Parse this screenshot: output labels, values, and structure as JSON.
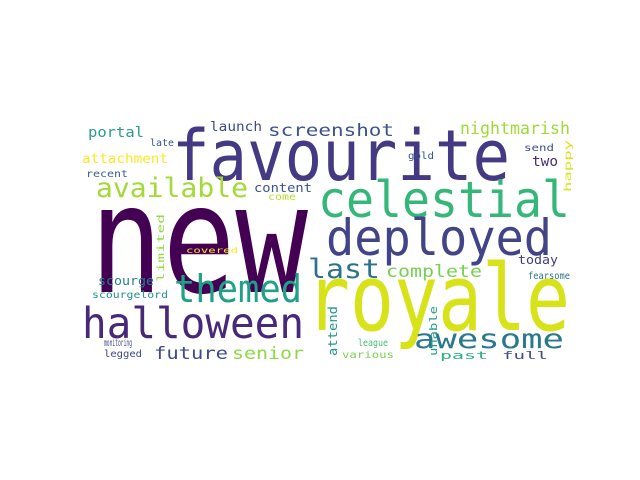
{
  "words": [
    {
      "text": "new",
      "color": "#440154"
    },
    {
      "text": "royale",
      "color": "#d8e219"
    },
    {
      "text": "favourite",
      "color": "#443983"
    },
    {
      "text": "celestial",
      "color": "#35b779"
    },
    {
      "text": "deployed",
      "color": "#414487"
    },
    {
      "text": "halloween",
      "color": "#482878"
    },
    {
      "text": "themed",
      "color": "#1fa188"
    },
    {
      "text": "available",
      "color": "#a2da37"
    },
    {
      "text": "awesome",
      "color": "#2a788e"
    },
    {
      "text": "last",
      "color": "#2c728e"
    },
    {
      "text": "screenshot",
      "color": "#3b528b"
    },
    {
      "text": "nightmarish",
      "color": "#a0da39"
    },
    {
      "text": "complete",
      "color": "#75d054"
    },
    {
      "text": "future",
      "color": "#3e4a89"
    },
    {
      "text": "senior",
      "color": "#8fd744"
    },
    {
      "text": "portal",
      "color": "#2a9d8c"
    },
    {
      "text": "launch",
      "color": "#3e4989"
    },
    {
      "text": "attachment",
      "color": "#fde725"
    },
    {
      "text": "content",
      "color": "#3a548c"
    },
    {
      "text": "two",
      "color": "#472d7b"
    },
    {
      "text": "scourge",
      "color": "#277f8e"
    },
    {
      "text": "today",
      "color": "#443a83"
    },
    {
      "text": "late",
      "color": "#3b518b"
    },
    {
      "text": "gold",
      "color": "#39568c"
    },
    {
      "text": "send",
      "color": "#3e4c8a"
    },
    {
      "text": "recent",
      "color": "#355f8d"
    },
    {
      "text": "come",
      "color": "#b5de2b"
    },
    {
      "text": "covered",
      "color": "#fde725"
    },
    {
      "text": "fearsome",
      "color": "#2a768e"
    },
    {
      "text": "scourgelord",
      "color": "#21918c"
    },
    {
      "text": "league",
      "color": "#44bf70"
    },
    {
      "text": "monitoring",
      "color": "#404688"
    },
    {
      "text": "legged",
      "color": "#3f4788"
    },
    {
      "text": "various",
      "color": "#7ad151"
    },
    {
      "text": "past",
      "color": "#2ab07f"
    },
    {
      "text": "full",
      "color": "#3c4f8a"
    },
    {
      "text": "happy",
      "color": "#dde318"
    },
    {
      "text": "limited",
      "color": "#95d840"
    },
    {
      "text": "attend",
      "color": "#1f968b"
    },
    {
      "text": "unable",
      "color": "#1f9e89"
    }
  ]
}
